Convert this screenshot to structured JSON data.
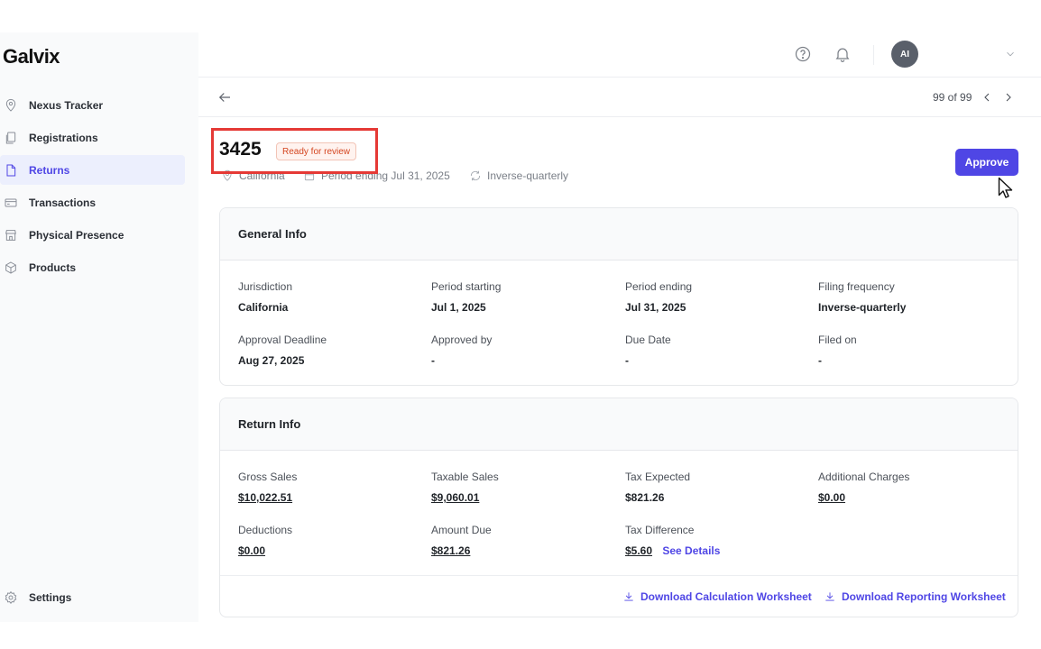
{
  "app": {
    "logo": "Galvix"
  },
  "sidebar": {
    "items": [
      {
        "label": "Nexus Tracker",
        "icon": "map-pin-icon"
      },
      {
        "label": "Registrations",
        "icon": "documents-icon"
      },
      {
        "label": "Returns",
        "icon": "file-icon",
        "active": true
      },
      {
        "label": "Transactions",
        "icon": "credit-card-icon"
      },
      {
        "label": "Physical Presence",
        "icon": "store-icon"
      },
      {
        "label": "Products",
        "icon": "box-icon"
      }
    ],
    "settings_label": "Settings"
  },
  "topbar": {
    "avatar_initials": "AI"
  },
  "pager": {
    "text": "99 of 99"
  },
  "return": {
    "id": "3425",
    "status": "Ready for review",
    "jurisdiction": "California",
    "period": "Period ending Jul 31, 2025",
    "frequency": "Inverse-quarterly",
    "approve_label": "Approve"
  },
  "general_info": {
    "title": "General Info",
    "fields": [
      {
        "label": "Jurisdiction",
        "value": "California"
      },
      {
        "label": "Period starting",
        "value": "Jul 1, 2025"
      },
      {
        "label": "Period ending",
        "value": "Jul 31, 2025"
      },
      {
        "label": "Filing frequency",
        "value": "Inverse-quarterly"
      },
      {
        "label": "Approval Deadline",
        "value": "Aug 27, 2025"
      },
      {
        "label": "Approved by",
        "value": "-"
      },
      {
        "label": "Due Date",
        "value": "-"
      },
      {
        "label": "Filed on",
        "value": "-"
      }
    ]
  },
  "return_info": {
    "title": "Return Info",
    "fields": [
      {
        "label": "Gross Sales",
        "value": "$10,022.51"
      },
      {
        "label": "Taxable Sales",
        "value": "$9,060.01"
      },
      {
        "label": "Tax Expected",
        "value": "$821.26"
      },
      {
        "label": "Additional Charges",
        "value": "$0.00"
      },
      {
        "label": "Deductions",
        "value": "$0.00"
      },
      {
        "label": "Amount Due",
        "value": "$821.26"
      },
      {
        "label": "Tax Difference",
        "value": "$5.60"
      }
    ],
    "see_details": "See Details",
    "download_calc": "Download Calculation Worksheet",
    "download_report": "Download Reporting Worksheet"
  },
  "colors": {
    "accent": "#4f46e5",
    "danger": "#e0462a",
    "badge_text": "#d4451f"
  }
}
